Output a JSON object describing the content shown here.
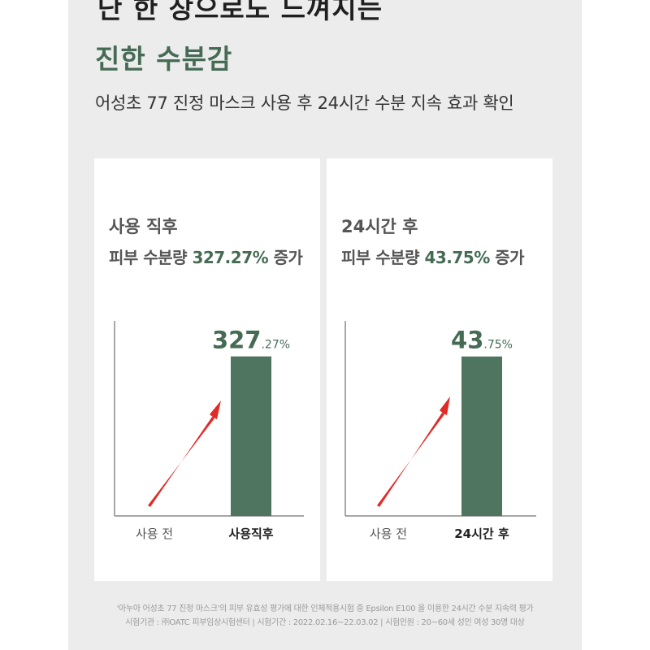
{
  "header": {
    "headline_line1": "단 한 장으로도 느껴지는",
    "headline_line2": "진한 수분감",
    "subtitle": "어성초 77 진정 마스크 사용 후 24시간 수분 지속 효과 확인"
  },
  "colors": {
    "accent": "#466b55",
    "bar": "#4f7560",
    "arrow": "#e02b27",
    "panel_bg": "#ececec"
  },
  "cards": [
    {
      "title": "사용 직후",
      "desc_prefix": "피부 수분량 ",
      "desc_value": "327.27%",
      "desc_suffix": " 증가"
    },
    {
      "title": "24시간 후",
      "desc_prefix": "피부 수분량 ",
      "desc_value": "43.75%",
      "desc_suffix": " 증가"
    }
  ],
  "chart_data": [
    {
      "type": "bar",
      "title": "사용 직후 피부 수분량 327.27% 증가",
      "categories": [
        "사용 전",
        "사용직후"
      ],
      "values": [
        0,
        327.27
      ],
      "unit": "%",
      "value_label": {
        "major": "327",
        "minor": ".27%"
      },
      "highlight_category": "사용직후",
      "ylim": [
        0,
        400
      ]
    },
    {
      "type": "bar",
      "title": "24시간 후 피부 수분량 43.75% 증가",
      "categories": [
        "사용 전",
        "24시간 후"
      ],
      "values": [
        0,
        43.75
      ],
      "unit": "%",
      "value_label": {
        "major": "43",
        "minor": ".75%"
      },
      "highlight_category": "24시간 후",
      "ylim": [
        0,
        53.5
      ]
    }
  ],
  "footnote": {
    "line1": "'아누아 어성초 77 진정 마스크'의 피부 유효성 평가에 대한 인체적용시험 중 Epsilon E100 을 이용한 24시간 수분 지속력 평가",
    "line2": "시험기관 : ㈜OATC 피부임상시험센터 | 시험기간 : 2022.02.16~22.03.02 | 시험인원 : 20~60세 성인 여성 30명 대상"
  }
}
